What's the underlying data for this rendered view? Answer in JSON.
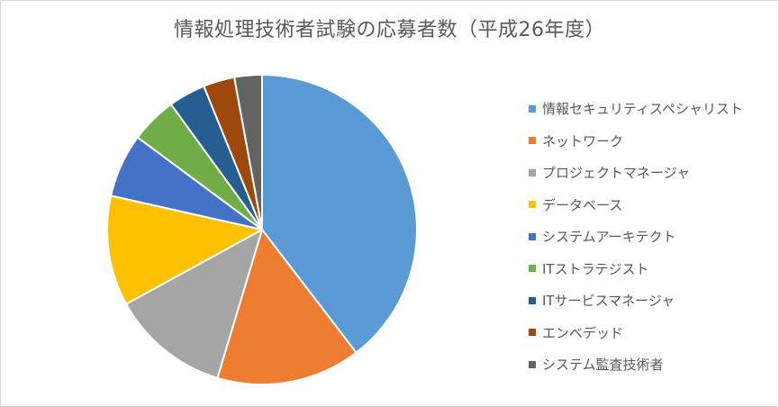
{
  "chart_data": {
    "type": "pie",
    "title": "情報処理技術者試験の応募者数（平成26年度）",
    "legend_position": "right",
    "categories": [
      "情報セキュリティスペシャリスト",
      "ネットワーク",
      "プロジェクトマネージャ",
      "データベース",
      "システムアーキテクト",
      "ITストラテジスト",
      "ITサービスマネージャ",
      "エンベデッド",
      "システム監査技術者"
    ],
    "values": [
      40.0,
      15.2,
      12.5,
      11.6,
      6.7,
      4.9,
      3.9,
      3.3,
      2.9
    ],
    "colors": [
      "#5b9bd5",
      "#ed7d31",
      "#a5a5a5",
      "#ffc000",
      "#4472c4",
      "#70ad47",
      "#255e91",
      "#9e480e",
      "#636363"
    ]
  }
}
